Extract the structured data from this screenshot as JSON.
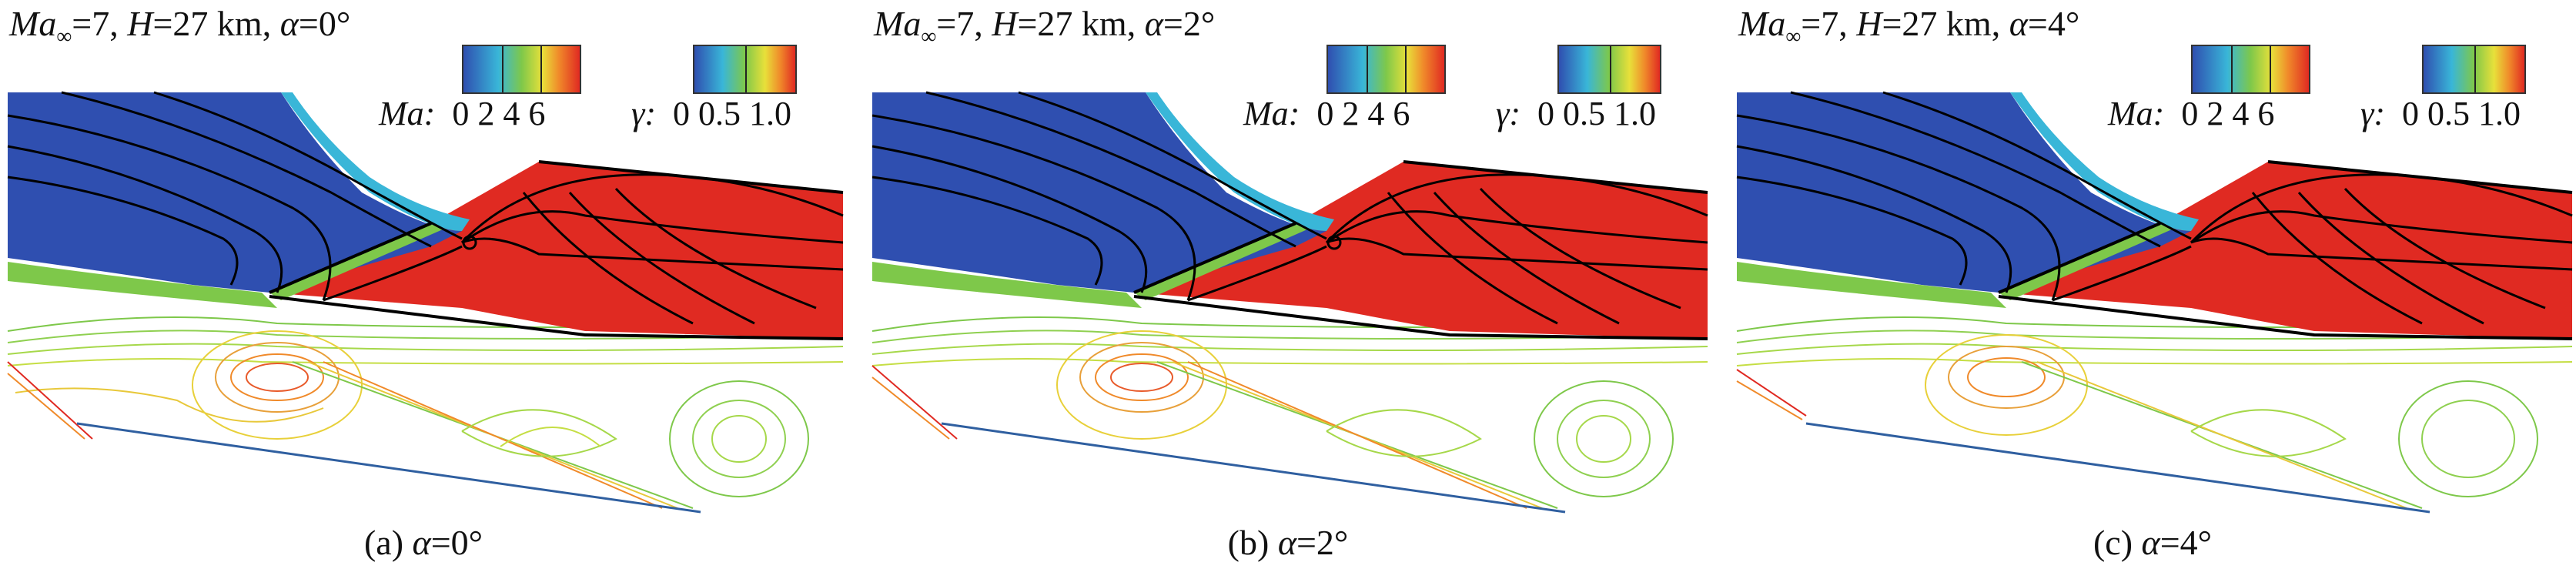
{
  "panels": [
    {
      "header": {
        "ma_sym": "Ma",
        "ma_sub": "∞",
        "ma_val": "=7, ",
        "h_sym": "H",
        "h_val": "=27 km, ",
        "a_sym": "α",
        "a_val": "=0°"
      },
      "ma_label": "Ma",
      "ma_ticks": "0 2 4 6",
      "gamma_label": "γ",
      "gamma_ticks": "0 0.5 1.0",
      "caption": {
        "prefix": "(a) ",
        "sym": "α",
        "val": "=0°"
      }
    },
    {
      "header": {
        "ma_sym": "Ma",
        "ma_sub": "∞",
        "ma_val": "=7, ",
        "h_sym": "H",
        "h_val": "=27 km, ",
        "a_sym": "α",
        "a_val": "=2°"
      },
      "ma_label": "Ma",
      "ma_ticks": "0 2 4 6",
      "gamma_label": "γ",
      "gamma_ticks": "0 0.5 1.0",
      "caption": {
        "prefix": "(b) ",
        "sym": "α",
        "val": "=2°"
      }
    },
    {
      "header": {
        "ma_sym": "Ma",
        "ma_sub": "∞",
        "ma_val": "=7, ",
        "h_sym": "H",
        "h_val": "=27 km, ",
        "a_sym": "α",
        "a_val": "=4°"
      },
      "ma_label": "Ma",
      "ma_ticks": "0 2 4 6",
      "gamma_label": "γ",
      "gamma_ticks": "0 0.5 1.0",
      "caption": {
        "prefix": "(c) ",
        "sym": "α",
        "val": "=4°"
      }
    }
  ],
  "colors": {
    "blue": "#2f4fb0",
    "red": "#e02a22",
    "green": "#7ec84a",
    "yellow": "#e8e03a",
    "cyan": "#39b6d8",
    "orange": "#f08a2a"
  }
}
